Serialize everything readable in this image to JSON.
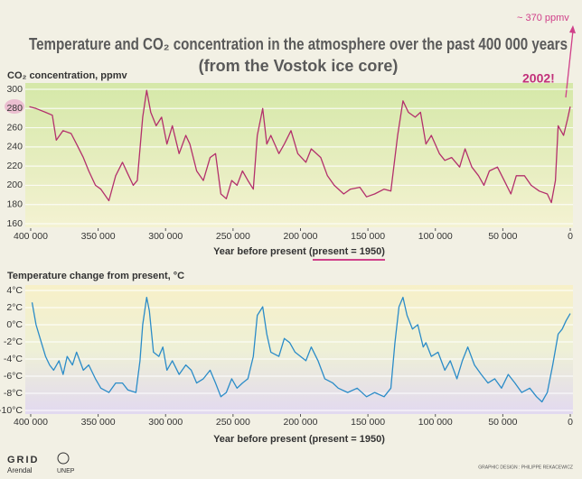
{
  "title": [
    "Temperature and CO₂ concentration in the atmosphere over the past 400 000 years",
    "(from the Vostok ice core)"
  ],
  "annotations": {
    "current_co2": "~ 370 ppmv",
    "year": "2002!"
  },
  "credits": "GRAPHIC DESIGN : PHILIPPE REKACEWICZ",
  "logos": [
    "GRID",
    "Arendal",
    "UNEP"
  ],
  "chart_data": [
    {
      "type": "line",
      "ylabel": "CO₂ concentration, ppmv",
      "xlabel": "Year before present (present = 1950)",
      "color": "#b3306c",
      "xlim": [
        404000,
        -2000
      ],
      "xticks": [
        {
          "value": 400000,
          "label": "400 000"
        },
        {
          "value": 350000,
          "label": "350 000"
        },
        {
          "value": 300000,
          "label": "300 000"
        },
        {
          "value": 250000,
          "label": "250 000"
        },
        {
          "value": 200000,
          "label": "200 000"
        },
        {
          "value": 150000,
          "label": "150 000"
        },
        {
          "value": 100000,
          "label": "100 000"
        },
        {
          "value": 50000,
          "label": "50 000"
        },
        0
      ],
      "ylim": [
        160,
        300
      ],
      "yticks": [
        160,
        180,
        200,
        220,
        240,
        260,
        280,
        300
      ],
      "grid": true,
      "x": [
        401000,
        396000,
        389000,
        384000,
        381000,
        376000,
        370000,
        366000,
        361000,
        357000,
        352000,
        348000,
        342000,
        337000,
        332000,
        328000,
        324000,
        321000,
        317000,
        314000,
        311000,
        307000,
        303000,
        299000,
        295000,
        290000,
        285000,
        282000,
        277000,
        272000,
        267000,
        263000,
        259000,
        255000,
        251000,
        247000,
        243000,
        239000,
        235000,
        232000,
        228000,
        225000,
        222000,
        216000,
        212000,
        207000,
        202000,
        196000,
        192000,
        185000,
        180000,
        175000,
        168000,
        163000,
        156000,
        151000,
        145000,
        138000,
        133000,
        128000,
        124000,
        120000,
        115000,
        111000,
        107000,
        103000,
        97000,
        93000,
        88000,
        82000,
        78000,
        73000,
        68000,
        64000,
        60000,
        54000,
        49000,
        44000,
        40000,
        34000,
        29000,
        23000,
        17000,
        14000,
        11000,
        9000,
        5000,
        2000,
        0
      ],
      "values": [
        282,
        280,
        276,
        273,
        247,
        257,
        254,
        243,
        229,
        215,
        200,
        196,
        184,
        210,
        224,
        212,
        200,
        205,
        271,
        299,
        276,
        262,
        271,
        243,
        262,
        233,
        252,
        243,
        215,
        205,
        229,
        233,
        191,
        186,
        205,
        200,
        215,
        205,
        196,
        252,
        280,
        243,
        252,
        233,
        243,
        257,
        233,
        224,
        238,
        229,
        210,
        200,
        191,
        196,
        198,
        188,
        191,
        196,
        194,
        252,
        288,
        276,
        271,
        276,
        243,
        252,
        233,
        226,
        229,
        219,
        238,
        219,
        210,
        200,
        215,
        219,
        205,
        191,
        210,
        210,
        200,
        194,
        191,
        182,
        205,
        262,
        252,
        269,
        282
      ]
    },
    {
      "type": "line",
      "ylabel": "Temperature change from present, °C",
      "xlabel": "Year before present (present = 1950)",
      "color": "#2b8cc8",
      "xlim": [
        404000,
        -2000
      ],
      "xticks": [
        {
          "value": 400000,
          "label": "400 000"
        },
        {
          "value": 350000,
          "label": "350 000"
        },
        {
          "value": 300000,
          "label": "300 000"
        },
        {
          "value": 250000,
          "label": "250 000"
        },
        {
          "value": 200000,
          "label": "200 000"
        },
        {
          "value": 150000,
          "label": "150 000"
        },
        {
          "value": 100000,
          "label": "100 000"
        },
        {
          "value": 50000,
          "label": "50 000"
        },
        0
      ],
      "ylim": [
        -10,
        4
      ],
      "yticks": [
        {
          "value": 4,
          "label": "4°C"
        },
        {
          "value": 2,
          "label": "2°C"
        },
        {
          "value": 0,
          "label": "0°C"
        },
        {
          "value": -2,
          "label": "-2°C"
        },
        {
          "value": -4,
          "label": "-4°C"
        },
        {
          "value": -6,
          "label": "-6°C"
        },
        {
          "value": -8,
          "label": "-8°C"
        },
        {
          "value": -10,
          "label": "-10°C"
        }
      ],
      "grid": true,
      "x": [
        399000,
        396000,
        393000,
        389000,
        386000,
        383000,
        379000,
        376000,
        373000,
        369000,
        366000,
        361000,
        357000,
        352000,
        348000,
        342000,
        337000,
        332000,
        328000,
        322000,
        319000,
        317000,
        314000,
        312000,
        309000,
        305000,
        302000,
        299000,
        295000,
        290000,
        285000,
        281000,
        277000,
        272000,
        267000,
        263000,
        259000,
        255000,
        251000,
        247000,
        243000,
        239000,
        235000,
        232000,
        228000,
        225000,
        222000,
        216000,
        212000,
        208000,
        204000,
        200000,
        196000,
        192000,
        187000,
        182000,
        176000,
        172000,
        165000,
        158000,
        151000,
        145000,
        138000,
        133000,
        130000,
        127000,
        124000,
        121000,
        117000,
        113000,
        109000,
        107000,
        103000,
        98000,
        93000,
        89000,
        84000,
        80000,
        76000,
        71000,
        66000,
        61000,
        56000,
        51000,
        46000,
        41000,
        36000,
        30000,
        25000,
        21000,
        17000,
        13000,
        9000,
        6000,
        3000,
        0
      ],
      "values": [
        2.6,
        0,
        -1.6,
        -3.7,
        -4.7,
        -5.3,
        -4.2,
        -5.8,
        -3.7,
        -4.7,
        -3.2,
        -5.3,
        -4.7,
        -6.3,
        -7.4,
        -7.9,
        -6.8,
        -6.8,
        -7.6,
        -7.9,
        -4.2,
        0,
        3.2,
        1.6,
        -3.2,
        -3.7,
        -2.6,
        -5.3,
        -4.2,
        -5.8,
        -4.7,
        -5.3,
        -6.8,
        -6.3,
        -5.3,
        -6.8,
        -8.4,
        -7.9,
        -6.3,
        -7.4,
        -6.8,
        -6.3,
        -3.7,
        1.1,
        2.1,
        -1.1,
        -3.2,
        -3.7,
        -1.6,
        -2.1,
        -3.2,
        -3.7,
        -4.2,
        -2.6,
        -4.2,
        -6.3,
        -6.8,
        -7.4,
        -7.9,
        -7.4,
        -8.4,
        -7.9,
        -8.4,
        -7.4,
        -2.1,
        2.1,
        3.2,
        1.1,
        -0.5,
        0,
        -2.6,
        -2.1,
        -3.7,
        -3.2,
        -5.3,
        -4.2,
        -6.3,
        -4.2,
        -2.6,
        -4.7,
        -5.8,
        -6.8,
        -6.3,
        -7.4,
        -5.8,
        -6.8,
        -7.9,
        -7.4,
        -8.4,
        -9,
        -7.9,
        -4.7,
        -1.1,
        -0.5,
        0.5,
        1.3
      ]
    }
  ]
}
